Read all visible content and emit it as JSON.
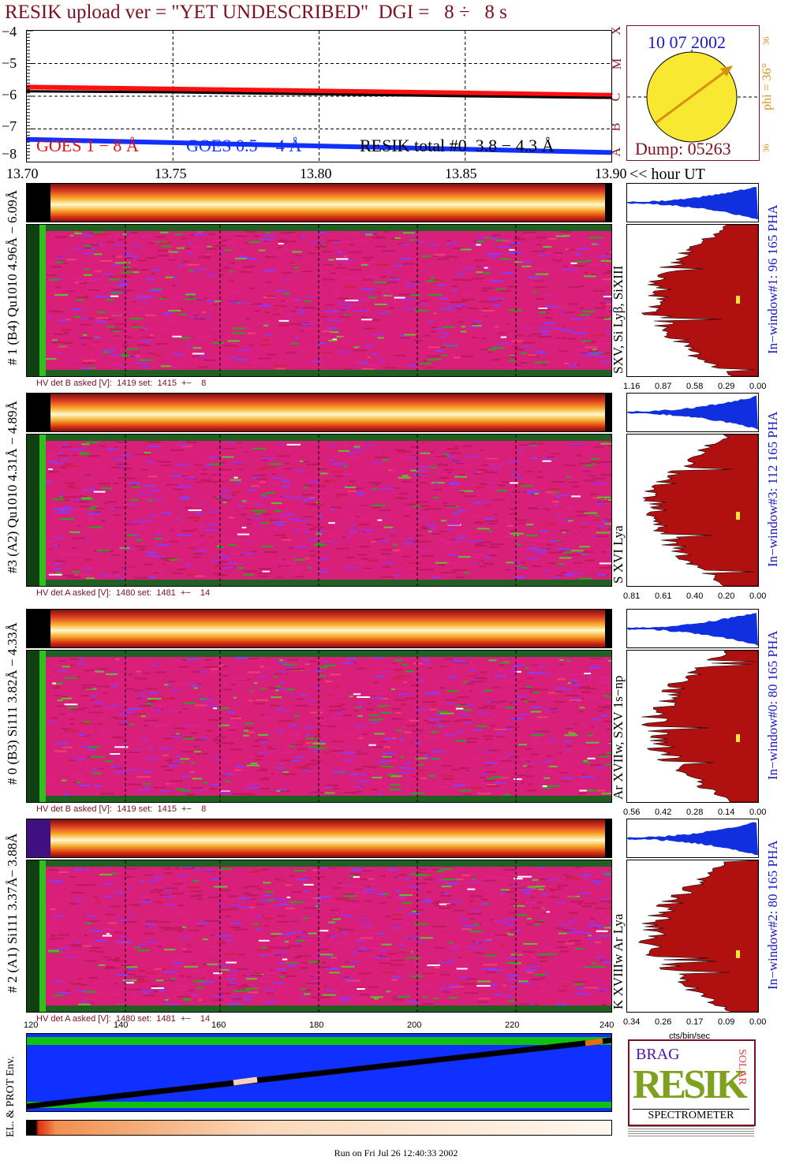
{
  "title": "RESIK upload ver = \"YET UNDESCRIBED\"  DGI =   8 ÷   8 s",
  "goes_panel": {
    "y_ticks": [
      "−4",
      "−5",
      "−6",
      "−7",
      "−8"
    ],
    "legend_red": "GOES 1 − 8 Å",
    "legend_blue": "GOES 0.5 − 4 Å",
    "legend_black": "RESIK total #0  3.8 − 4.3 Å",
    "right_letters": [
      "X",
      "M",
      "C",
      "B",
      "A"
    ]
  },
  "sun_panel": {
    "date": "10 07 2002",
    "dump": "Dump: 05263",
    "phi": "phi = 36°",
    "num_top": "36",
    "num_bottom": "36"
  },
  "time_axis": {
    "ticks": [
      "13.70",
      "13.75",
      "13.80",
      "13.85",
      "13.90"
    ],
    "unit": "<< hour UT"
  },
  "channels": [
    {
      "label": "# 1 (B4) Qu1010 4.96Å − 6.09Å",
      "lines": "SXV, Si Lyβ, SiXIII",
      "hv": "HV det B asked [V]:  1419 set:  1415  +−    8",
      "window": "In−window#1:   96 165  PHA",
      "pha_ticks": [
        "1.16",
        "0.87",
        "0.58",
        "0.29",
        "0.00"
      ]
    },
    {
      "label": "#3 (A2) Qu1010  4.31Å − 4.89Å",
      "lines": "S XVI Lya",
      "hv": "HV det A asked [V]:  1480 set:  1481  +−    14",
      "window": "In−window#3:  112 165  PHA",
      "pha_ticks": [
        "0.81",
        "0.61",
        "0.40",
        "0.20",
        "0.00"
      ]
    },
    {
      "label": "# 0 (B3) Si111  3.82Å − 4.33Å",
      "lines": "Ar XVIIw,  SXV 1s−np",
      "hv": "HV det B asked [V]:  1419 set:  1415  +−    8",
      "window": "In−window#0:   80 165  PHA",
      "pha_ticks": [
        "0.56",
        "0.42",
        "0.28",
        "0.14",
        "0.00"
      ]
    },
    {
      "label": "# 2 (A1) Si111  3.37Å− 3.88Å",
      "lines": "K XVIIIw  Ar Lya",
      "hv": "HV det A asked [V]:  1480 set:  1481  +−    14",
      "window": "In−window#2:   80 165  PHA",
      "pha_ticks": [
        "0.34",
        "0.26",
        "0.17",
        "0.09",
        "0.00"
      ]
    }
  ],
  "bin_axis": {
    "ticks": [
      "120",
      "140",
      "160",
      "180",
      "200",
      "220",
      "240"
    ]
  },
  "pha_unit": "cts/bin/sec",
  "env_label": "EL. & PROT Env.",
  "logo": {
    "top": "BRAG",
    "main": "RESIK",
    "side": "SOLAR",
    "bottom": "SPECTROMETER"
  },
  "footer": "Run on Fri Jul 26 12:40:33 2002",
  "colors": {
    "title": "#7a1020",
    "goes_red": "#ff1010",
    "goes_blue": "#1030ff",
    "spectrum_bg": "#d8207a",
    "histogram": "#b01010",
    "pha_blue": "#1030e0",
    "env_blue": "#1030ff",
    "env_green": "#10c010",
    "sun": "#f8e830",
    "sun_arrow": "#d89010"
  },
  "chart_data": {
    "type": "line",
    "title": "",
    "xlabel": "hour UT",
    "xlim": [
      13.7,
      13.9
    ],
    "ylim": [
      -8,
      -4
    ],
    "series": [
      {
        "name": "GOES 1 − 8 Å",
        "x": [
          13.7,
          13.75,
          13.8,
          13.85,
          13.9
        ],
        "values": [
          -5.72,
          -5.78,
          -5.84,
          -5.9,
          -5.97
        ]
      },
      {
        "name": "GOES 0.5 − 4 Å",
        "x": [
          13.7,
          13.75,
          13.8,
          13.85,
          13.9
        ],
        "values": [
          -7.32,
          -7.42,
          -7.52,
          -7.62,
          -7.72
        ]
      },
      {
        "name": "RESIK total #0  3.8 − 4.3 Å",
        "x": [
          13.7,
          13.75,
          13.8,
          13.85,
          13.9
        ],
        "values": [
          -5.85,
          -5.88,
          -5.94,
          -6.0,
          -6.05
        ]
      }
    ]
  }
}
